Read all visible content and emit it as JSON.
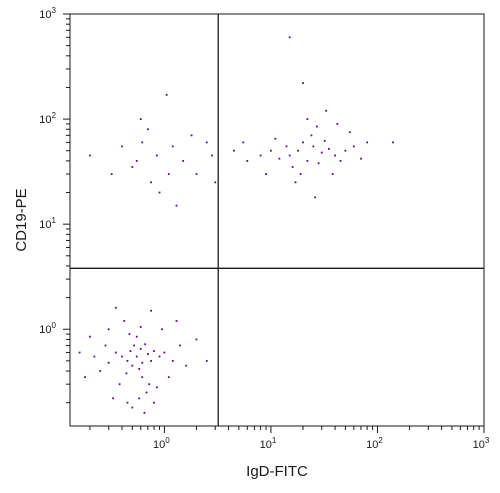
{
  "chart_data": {
    "type": "scatter",
    "title": "",
    "xlabel": "IgD-FITC",
    "ylabel": "CD19-PE",
    "x_scale": "log",
    "y_scale": "log",
    "xlim": [
      0.13,
      1000
    ],
    "ylim": [
      0.12,
      1000
    ],
    "x_ticks": [
      {
        "base": "10",
        "exp": "0"
      },
      {
        "base": "10",
        "exp": "1"
      },
      {
        "base": "10",
        "exp": "2"
      },
      {
        "base": "10",
        "exp": "3"
      }
    ],
    "y_ticks": [
      {
        "base": "10",
        "exp": "0"
      },
      {
        "base": "10",
        "exp": "1"
      },
      {
        "base": "10",
        "exp": "2"
      },
      {
        "base": "10",
        "exp": "3"
      }
    ],
    "quadrant_gates": {
      "x": 3.2,
      "y": 3.8
    },
    "grid": false,
    "legend": "none",
    "point_color": "#5b0a8f",
    "series": [
      {
        "name": "",
        "values": [
          [
            0.55,
            0.55
          ],
          [
            0.48,
            0.62
          ],
          [
            0.62,
            0.48
          ],
          [
            0.7,
            0.58
          ],
          [
            0.45,
            0.5
          ],
          [
            0.52,
            0.7
          ],
          [
            0.6,
            0.65
          ],
          [
            0.4,
            0.55
          ],
          [
            0.75,
            0.5
          ],
          [
            0.58,
            0.42
          ],
          [
            0.5,
            0.45
          ],
          [
            0.66,
            0.72
          ],
          [
            0.35,
            0.6
          ],
          [
            0.8,
            0.62
          ],
          [
            0.44,
            0.38
          ],
          [
            0.9,
            0.55
          ],
          [
            0.3,
            0.48
          ],
          [
            0.62,
            0.35
          ],
          [
            0.55,
            0.85
          ],
          [
            1.0,
            0.6
          ],
          [
            0.28,
            0.7
          ],
          [
            0.72,
            0.3
          ],
          [
            0.47,
            0.9
          ],
          [
            1.2,
            0.5
          ],
          [
            0.25,
            0.4
          ],
          [
            0.85,
            0.28
          ],
          [
            0.38,
            0.3
          ],
          [
            0.6,
            1.05
          ],
          [
            1.4,
            0.7
          ],
          [
            0.22,
            0.55
          ],
          [
            0.95,
            1.0
          ],
          [
            0.33,
            0.22
          ],
          [
            0.8,
            0.2
          ],
          [
            0.5,
            0.18
          ],
          [
            1.6,
            0.45
          ],
          [
            0.2,
            0.85
          ],
          [
            0.42,
            1.2
          ],
          [
            0.68,
            0.25
          ],
          [
            1.1,
            0.35
          ],
          [
            0.3,
            1.0
          ],
          [
            2.0,
            0.8
          ],
          [
            0.18,
            0.35
          ],
          [
            0.75,
            1.5
          ],
          [
            0.35,
            1.6
          ],
          [
            1.3,
            1.2
          ],
          [
            0.58,
            0.22
          ],
          [
            0.65,
            0.16
          ],
          [
            0.45,
            0.2
          ],
          [
            2.5,
            0.5
          ],
          [
            0.16,
            0.6
          ],
          [
            15,
            45
          ],
          [
            18,
            50
          ],
          [
            22,
            40
          ],
          [
            25,
            55
          ],
          [
            30,
            48
          ],
          [
            20,
            60
          ],
          [
            12,
            42
          ],
          [
            28,
            38
          ],
          [
            35,
            52
          ],
          [
            16,
            35
          ],
          [
            40,
            45
          ],
          [
            24,
            70
          ],
          [
            10,
            50
          ],
          [
            32,
            62
          ],
          [
            45,
            40
          ],
          [
            14,
            55
          ],
          [
            19,
            30
          ],
          [
            50,
            50
          ],
          [
            27,
            85
          ],
          [
            8,
            45
          ],
          [
            38,
            30
          ],
          [
            60,
            55
          ],
          [
            22,
            100
          ],
          [
            6,
            40
          ],
          [
            11,
            65
          ],
          [
            33,
            120
          ],
          [
            55,
            75
          ],
          [
            4.5,
            50
          ],
          [
            17,
            25
          ],
          [
            70,
            42
          ],
          [
            42,
            90
          ],
          [
            9,
            30
          ],
          [
            26,
            18
          ],
          [
            5.5,
            60
          ],
          [
            80,
            60
          ],
          [
            140,
            60
          ],
          [
            15,
            600
          ],
          [
            20,
            220
          ],
          [
            1.05,
            170
          ],
          [
            0.62,
            60
          ],
          [
            0.85,
            45
          ],
          [
            1.2,
            55
          ],
          [
            0.5,
            35
          ],
          [
            1.5,
            40
          ],
          [
            0.4,
            55
          ],
          [
            2.0,
            30
          ],
          [
            0.75,
            25
          ],
          [
            2.5,
            60
          ],
          [
            0.32,
            30
          ],
          [
            0.7,
            80
          ],
          [
            1.8,
            70
          ],
          [
            0.9,
            20
          ],
          [
            2.8,
            45
          ],
          [
            0.55,
            40
          ],
          [
            1.3,
            15
          ],
          [
            0.2,
            45
          ],
          [
            3.0,
            25
          ],
          [
            0.6,
            100
          ],
          [
            1.1,
            30
          ]
        ]
      }
    ]
  }
}
